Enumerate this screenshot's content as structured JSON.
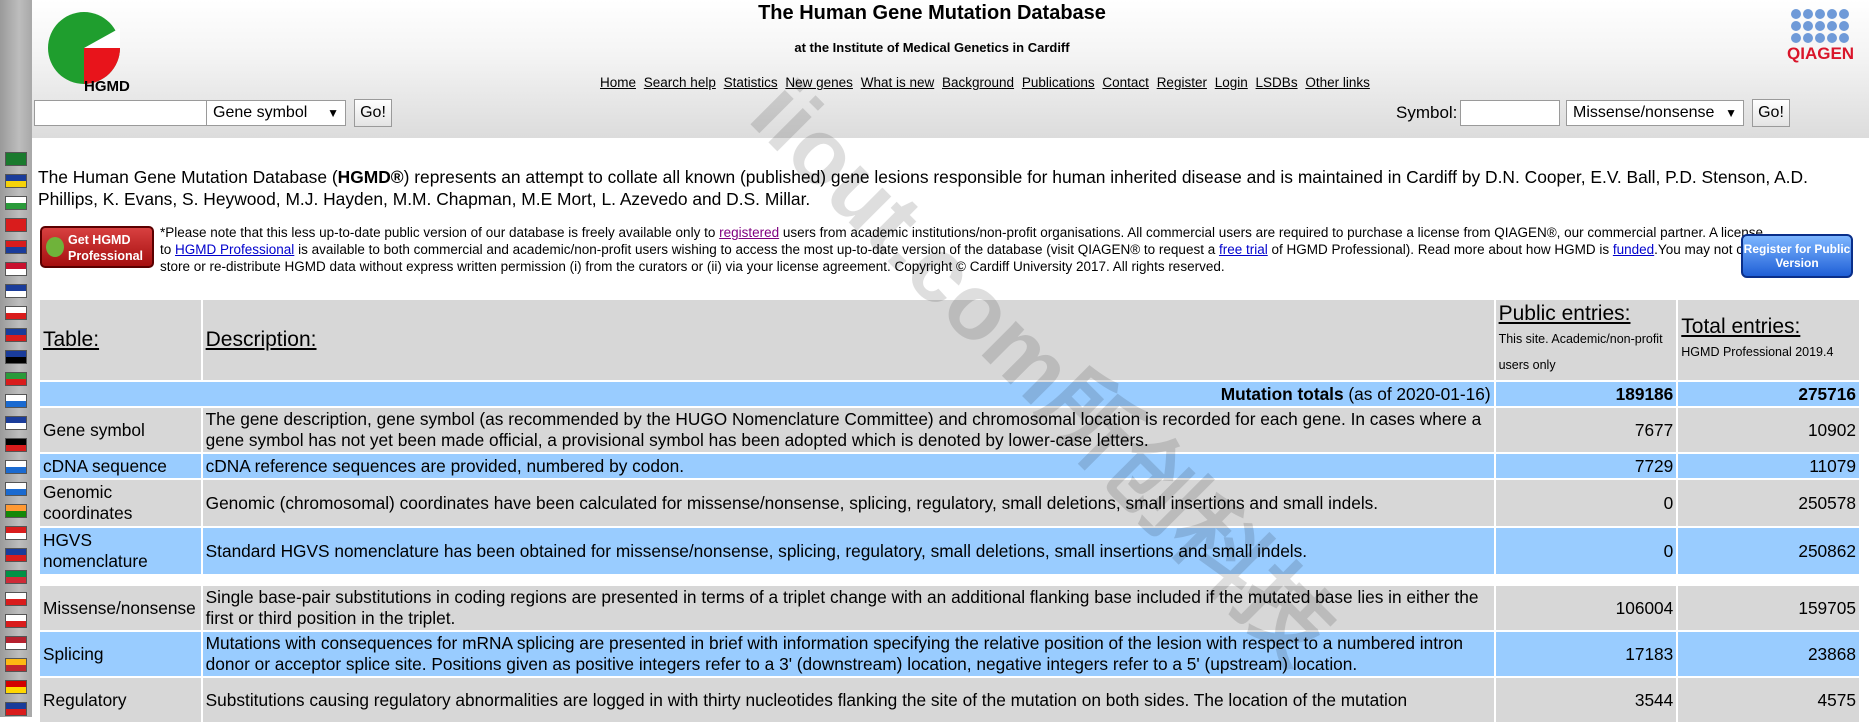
{
  "header": {
    "logo_text": "HGMD",
    "title": "The Human Gene Mutation Database",
    "subtitle": "at the Institute of Medical Genetics in Cardiff",
    "nav": [
      "Home",
      "Search help",
      "Statistics",
      "New genes",
      "What is new",
      "Background",
      "Publications",
      "Contact",
      "Register",
      "Login",
      "LSDBs",
      "Other links"
    ],
    "qiagen_text": "QIAGEN",
    "search_left": {
      "value": "",
      "select": "Gene symbol",
      "go": "Go!"
    },
    "search_right": {
      "label": "Symbol:",
      "value": "",
      "select": "Missense/nonsense",
      "go": "Go!"
    }
  },
  "watermark": "iiout.com所创科技",
  "intro": {
    "pre": "The Human Gene Mutation Database (",
    "bold": "HGMD®",
    "post": ") represents an attempt to collate all known (published) gene lesions responsible for human inherited disease and is maintained in Cardiff by D.N. Cooper, E.V. Ball, P.D. Stenson, A.D. Phillips, K. Evans, S. Heywood, M.J. Hayden, M.M. Chapman, M.E Mort, L. Azevedo and D.S. Millar."
  },
  "notice": {
    "get_pro": "Get HGMD Professional",
    "t1": "*Please note that this less up-to-date public version of our database is freely available only to ",
    "link_registered": "registered",
    "t2": " users from academic institutions/non-profit organisations. All commercial users are required to purchase a license from QIAGEN®, our commercial partner. A license to ",
    "link_pro": "HGMD Professional",
    "t3": " is available to both commercial and academic/non-profit users wishing to access the most up-to-date version of the database (visit QIAGEN® to request a ",
    "link_trial": "free trial",
    "t4": " of HGMD Professional). Read more about how HGMD is ",
    "link_funded": "funded",
    "t5": ".You may not copy, store or re-distribute HGMD data without express written permission (i) from the curators or (ii) via your license agreement. Copyright © Cardiff University 2017. All rights reserved.",
    "register": "Register for Public Version"
  },
  "table": {
    "headers": {
      "table": "Table:",
      "description": "Description:",
      "public": "Public entries:",
      "public_note": "This site. Academic/non-profit users only",
      "total": "Total entries:",
      "total_note": "HGMD Professional 2019.4"
    },
    "totals": {
      "label_bold": "Mutation totals",
      "label_rest": " (as of 2020-01-16)",
      "public": "189186",
      "total": "275716"
    },
    "rows": [
      {
        "name": "Gene symbol",
        "desc": "The gene description, gene symbol (as recommended by the HUGO Nomenclature Committee) and chromosomal location is recorded for each gene. In cases where a gene symbol has not yet been made official, a provisional symbol has been adopted which is denoted by lower-case letters.",
        "public": "7677",
        "total": "10902"
      },
      {
        "name": "cDNA sequence",
        "desc": "cDNA reference sequences are provided, numbered by codon.",
        "public": "7729",
        "total": "11079"
      },
      {
        "name": "Genomic coordinates",
        "desc": "Genomic (chromosomal) coordinates have been calculated for missense/nonsense, splicing, regulatory, small deletions, small insertions and small indels.",
        "public": "0",
        "total": "250578"
      },
      {
        "name": "HGVS nomenclature",
        "desc": "Standard HGVS nomenclature has been obtained for missense/nonsense, splicing, regulatory, small deletions, small insertions and small indels.",
        "public": "0",
        "total": "250862"
      },
      {
        "name": "Missense/nonsense",
        "desc": "Single base-pair substitutions in coding regions are presented in terms of a triplet change with an additional flanking base included if the mutated base lies in either the first or third position in the triplet.",
        "public": "106004",
        "total": "159705"
      },
      {
        "name": "Splicing",
        "desc": "Mutations with consequences for mRNA splicing are presented in brief with information specifying the relative position of the lesion with respect to a numbered intron donor or acceptor splice site. Positions given as positive integers refer to a 3' (downstream) location, negative integers refer to a 5' (upstream) location.",
        "public": "17183",
        "total": "23868"
      },
      {
        "name": "Regulatory",
        "desc": "Substitutions causing regulatory abnormalities are logged in with thirty nucleotides flanking the site of the mutation on both sides. The location of the mutation",
        "public": "3544",
        "total": "4575"
      }
    ]
  }
}
